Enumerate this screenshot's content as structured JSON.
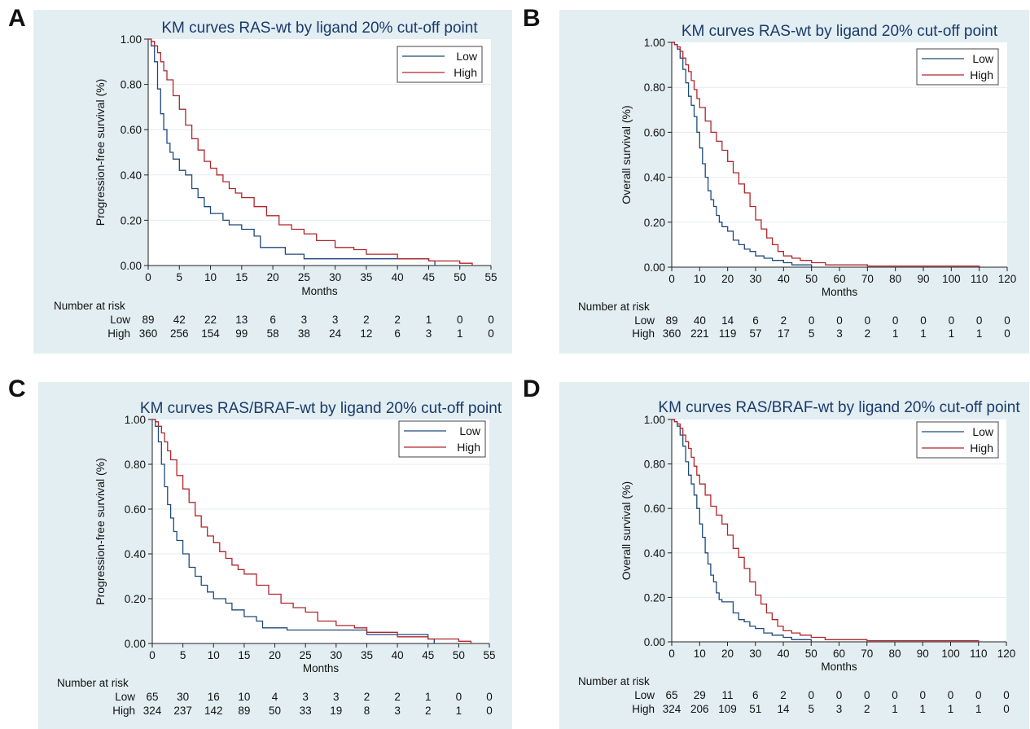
{
  "colors": {
    "low": "#1e4a7a",
    "high": "#b0262c",
    "panel_bg": "#e2eef2",
    "title": "#1a3a6a"
  },
  "panels": [
    {
      "letter": "A"
    },
    {
      "letter": "B"
    },
    {
      "letter": "C"
    },
    {
      "letter": "D"
    }
  ],
  "chart_data": [
    {
      "type": "line",
      "title": "KM curves RAS-wt by ligand 20% cut-off point",
      "xlabel": "Months",
      "ylabel": "Progression-free survival (%)",
      "xlim": [
        0,
        55
      ],
      "ylim": [
        0,
        1
      ],
      "xticks": [
        "0",
        "5",
        "10",
        "15",
        "20",
        "25",
        "30",
        "35",
        "40",
        "45",
        "50",
        "55"
      ],
      "yticks": [
        "0.00",
        "0.20",
        "0.40",
        "0.60",
        "0.80",
        "1.00"
      ],
      "grid": true,
      "legend_position": "top-right",
      "step": true,
      "series": [
        {
          "name": "Low",
          "color": "#1e4a7a",
          "x": [
            0,
            0.5,
            1,
            1.5,
            2,
            2.5,
            3,
            3.5,
            4,
            5,
            6,
            7,
            8,
            9,
            10,
            12,
            13,
            15,
            17,
            18,
            20,
            22,
            25,
            30,
            35,
            40,
            45,
            46
          ],
          "y": [
            1,
            0.97,
            0.9,
            0.78,
            0.67,
            0.6,
            0.54,
            0.5,
            0.47,
            0.42,
            0.4,
            0.34,
            0.3,
            0.26,
            0.23,
            0.2,
            0.18,
            0.16,
            0.13,
            0.08,
            0.08,
            0.05,
            0.03,
            0.03,
            0.03,
            0.03,
            0.02,
            0
          ]
        },
        {
          "name": "High",
          "color": "#b0262c",
          "x": [
            0,
            0.5,
            1,
            1.5,
            2,
            2.5,
            3,
            4,
            5,
            6,
            7,
            8,
            9,
            10,
            11,
            12,
            13,
            14,
            15,
            17,
            19,
            21,
            23,
            25,
            27,
            30,
            33,
            35,
            40,
            45,
            50,
            52
          ],
          "y": [
            1,
            0.99,
            0.97,
            0.94,
            0.9,
            0.86,
            0.82,
            0.75,
            0.69,
            0.62,
            0.56,
            0.51,
            0.46,
            0.43,
            0.4,
            0.37,
            0.34,
            0.32,
            0.3,
            0.26,
            0.22,
            0.18,
            0.16,
            0.14,
            0.11,
            0.08,
            0.07,
            0.05,
            0.03,
            0.02,
            0.01,
            0
          ]
        }
      ],
      "risk_table": {
        "heading": "Number at risk",
        "rows": [
          {
            "label": "Low",
            "values": [
              "89",
              "42",
              "22",
              "13",
              "6",
              "3",
              "3",
              "2",
              "2",
              "1",
              "0",
              "0"
            ]
          },
          {
            "label": "High",
            "values": [
              "360",
              "256",
              "154",
              "99",
              "58",
              "38",
              "24",
              "12",
              "6",
              "3",
              "1",
              "0"
            ]
          }
        ]
      }
    },
    {
      "type": "line",
      "title": "KM curves RAS-wt by ligand 20% cut-off point",
      "xlabel": "Months",
      "ylabel": "Overall survival (%)",
      "xlim": [
        0,
        120
      ],
      "ylim": [
        0,
        1
      ],
      "xticks": [
        "0",
        "10",
        "20",
        "30",
        "40",
        "50",
        "60",
        "70",
        "80",
        "90",
        "100",
        "110",
        "120"
      ],
      "yticks": [
        "0.00",
        "0.20",
        "0.40",
        "0.60",
        "0.80",
        "1.00"
      ],
      "grid": true,
      "legend_position": "top-right",
      "step": true,
      "series": [
        {
          "name": "Low",
          "color": "#1e4a7a",
          "x": [
            0,
            1,
            2,
            3,
            4,
            5,
            6,
            7,
            8,
            9,
            10,
            11,
            12,
            13,
            14,
            15,
            16,
            17,
            18,
            20,
            22,
            24,
            26,
            28,
            30,
            33,
            36,
            40,
            43,
            45,
            50
          ],
          "y": [
            1,
            0.99,
            0.97,
            0.93,
            0.88,
            0.82,
            0.76,
            0.72,
            0.67,
            0.6,
            0.53,
            0.46,
            0.4,
            0.34,
            0.3,
            0.27,
            0.23,
            0.2,
            0.18,
            0.16,
            0.12,
            0.1,
            0.08,
            0.07,
            0.05,
            0.04,
            0.03,
            0.02,
            0.01,
            0.01,
            0
          ]
        },
        {
          "name": "High",
          "color": "#b0262c",
          "x": [
            0,
            1,
            2,
            3,
            4,
            5,
            6,
            7,
            8,
            9,
            10,
            12,
            14,
            16,
            18,
            20,
            22,
            24,
            26,
            28,
            30,
            32,
            34,
            36,
            38,
            40,
            43,
            46,
            50,
            55,
            60,
            70,
            80,
            100,
            110
          ],
          "y": [
            1,
            0.99,
            0.98,
            0.96,
            0.93,
            0.9,
            0.87,
            0.83,
            0.79,
            0.75,
            0.71,
            0.65,
            0.6,
            0.56,
            0.52,
            0.47,
            0.42,
            0.37,
            0.33,
            0.27,
            0.21,
            0.17,
            0.13,
            0.1,
            0.07,
            0.05,
            0.04,
            0.03,
            0.02,
            0.01,
            0.01,
            0.005,
            0.005,
            0.005,
            0
          ]
        }
      ],
      "risk_table": {
        "heading": "Number at risk",
        "rows": [
          {
            "label": "Low",
            "values": [
              "89",
              "40",
              "14",
              "6",
              "2",
              "0",
              "0",
              "0",
              "0",
              "0",
              "0",
              "0",
              "0"
            ]
          },
          {
            "label": "High",
            "values": [
              "360",
              "221",
              "119",
              "57",
              "17",
              "5",
              "3",
              "2",
              "1",
              "1",
              "1",
              "1",
              "0"
            ]
          }
        ]
      }
    },
    {
      "type": "line",
      "title": "KM curves RAS/BRAF-wt by ligand 20% cut-off point",
      "xlabel": "Months",
      "ylabel": "Progression-free survival (%)",
      "xlim": [
        0,
        55
      ],
      "ylim": [
        0,
        1
      ],
      "xticks": [
        "0",
        "5",
        "10",
        "15",
        "20",
        "25",
        "30",
        "35",
        "40",
        "45",
        "50",
        "55"
      ],
      "yticks": [
        "0.00",
        "0.20",
        "0.40",
        "0.60",
        "0.80",
        "1.00"
      ],
      "grid": true,
      "legend_position": "top-right",
      "step": true,
      "series": [
        {
          "name": "Low",
          "color": "#1e4a7a",
          "x": [
            0,
            0.5,
            1,
            1.5,
            2,
            2.5,
            3,
            3.5,
            4,
            5,
            6,
            7,
            8,
            9,
            10,
            12,
            13,
            15,
            17,
            18,
            20,
            22,
            25,
            30,
            35,
            40,
            45,
            46
          ],
          "y": [
            1,
            0.97,
            0.9,
            0.8,
            0.7,
            0.62,
            0.56,
            0.5,
            0.46,
            0.4,
            0.34,
            0.3,
            0.26,
            0.23,
            0.2,
            0.18,
            0.15,
            0.12,
            0.1,
            0.07,
            0.07,
            0.06,
            0.06,
            0.06,
            0.04,
            0.04,
            0.02,
            0
          ]
        },
        {
          "name": "High",
          "color": "#b0262c",
          "x": [
            0,
            0.5,
            1,
            1.5,
            2,
            2.5,
            3,
            4,
            5,
            6,
            7,
            8,
            9,
            10,
            11,
            12,
            13,
            14,
            15,
            17,
            19,
            21,
            23,
            25,
            27,
            30,
            33,
            35,
            40,
            45,
            50,
            52
          ],
          "y": [
            1,
            0.99,
            0.97,
            0.94,
            0.9,
            0.86,
            0.82,
            0.75,
            0.69,
            0.63,
            0.57,
            0.52,
            0.48,
            0.45,
            0.41,
            0.38,
            0.35,
            0.33,
            0.31,
            0.26,
            0.22,
            0.18,
            0.16,
            0.14,
            0.1,
            0.08,
            0.07,
            0.05,
            0.03,
            0.02,
            0.01,
            0
          ]
        }
      ],
      "risk_table": {
        "heading": "Number at risk",
        "rows": [
          {
            "label": "Low",
            "values": [
              "65",
              "30",
              "16",
              "10",
              "4",
              "3",
              "3",
              "2",
              "2",
              "1",
              "0",
              "0"
            ]
          },
          {
            "label": "High",
            "values": [
              "324",
              "237",
              "142",
              "89",
              "50",
              "33",
              "19",
              "8",
              "3",
              "2",
              "1",
              "0"
            ]
          }
        ]
      }
    },
    {
      "type": "line",
      "title": "KM curves RAS/BRAF-wt by ligand 20% cut-off point",
      "xlabel": "Months",
      "ylabel": "Overall survival (%)",
      "xlim": [
        0,
        120
      ],
      "ylim": [
        0,
        1
      ],
      "xticks": [
        "0",
        "10",
        "20",
        "30",
        "40",
        "50",
        "60",
        "70",
        "80",
        "90",
        "100",
        "110",
        "120"
      ],
      "yticks": [
        "0.00",
        "0.20",
        "0.40",
        "0.60",
        "0.80",
        "1.00"
      ],
      "grid": true,
      "legend_position": "top-right",
      "step": true,
      "series": [
        {
          "name": "Low",
          "color": "#1e4a7a",
          "x": [
            0,
            1,
            2,
            3,
            4,
            5,
            6,
            7,
            8,
            9,
            10,
            11,
            12,
            13,
            14,
            15,
            16,
            17,
            18,
            20,
            22,
            24,
            26,
            28,
            30,
            33,
            36,
            40,
            43,
            45,
            50
          ],
          "y": [
            1,
            0.99,
            0.97,
            0.93,
            0.88,
            0.81,
            0.75,
            0.71,
            0.66,
            0.6,
            0.53,
            0.47,
            0.4,
            0.35,
            0.3,
            0.27,
            0.22,
            0.19,
            0.18,
            0.18,
            0.13,
            0.1,
            0.09,
            0.07,
            0.06,
            0.04,
            0.03,
            0.02,
            0.01,
            0.01,
            0
          ]
        },
        {
          "name": "High",
          "color": "#b0262c",
          "x": [
            0,
            1,
            2,
            3,
            4,
            5,
            6,
            7,
            8,
            9,
            10,
            12,
            14,
            16,
            18,
            20,
            22,
            24,
            26,
            28,
            30,
            32,
            34,
            36,
            38,
            40,
            43,
            46,
            50,
            55,
            60,
            70,
            80,
            100,
            110
          ],
          "y": [
            1,
            0.99,
            0.98,
            0.96,
            0.93,
            0.9,
            0.87,
            0.83,
            0.79,
            0.75,
            0.71,
            0.66,
            0.61,
            0.57,
            0.53,
            0.48,
            0.42,
            0.38,
            0.33,
            0.27,
            0.21,
            0.17,
            0.13,
            0.1,
            0.07,
            0.05,
            0.04,
            0.03,
            0.02,
            0.01,
            0.01,
            0.005,
            0.005,
            0.005,
            0
          ]
        }
      ],
      "risk_table": {
        "heading": "Number at risk",
        "rows": [
          {
            "label": "Low",
            "values": [
              "65",
              "29",
              "11",
              "6",
              "2",
              "0",
              "0",
              "0",
              "0",
              "0",
              "0",
              "0",
              "0"
            ]
          },
          {
            "label": "High",
            "values": [
              "324",
              "206",
              "109",
              "51",
              "14",
              "5",
              "3",
              "2",
              "1",
              "1",
              "1",
              "1",
              "0"
            ]
          }
        ]
      }
    }
  ]
}
